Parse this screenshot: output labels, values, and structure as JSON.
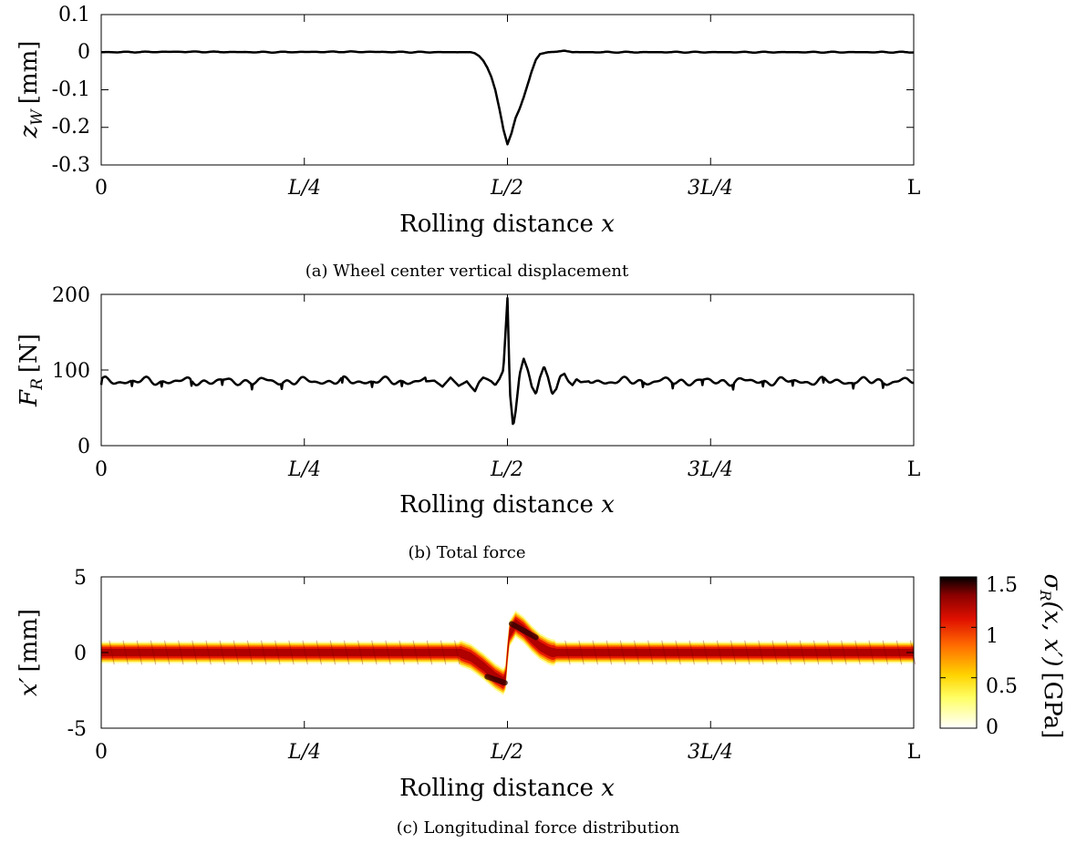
{
  "figure": {
    "captions": [
      "(a) Wheel center vertical displacement",
      "(b) Total force",
      "(c) Longitudinal force distribution"
    ]
  },
  "colors": {
    "line": "#000000",
    "axes": "#000000",
    "background": "#ffffff"
  },
  "chart_data": [
    {
      "type": "line",
      "panel": "a",
      "caption": "(a) Wheel center vertical displacement",
      "xlabel_text": "Rolling distance",
      "xlabel_var": "x",
      "ylabel_sym": "z",
      "ylabel_sub": "W",
      "ylabel_unit": "[mm]",
      "xticks": [
        "0",
        "L/4",
        "L/2",
        "3L/4",
        "L"
      ],
      "yticks": [
        "0.1",
        "0",
        "-0.1",
        "-0.2",
        "-0.3"
      ],
      "xlim": [
        0,
        1
      ],
      "ylim": [
        -0.3,
        0.1
      ],
      "x_unit": "fraction of L",
      "series": [
        {
          "x": [
            0,
            0.1,
            0.2,
            0.3,
            0.4,
            0.45,
            0.455,
            0.46,
            0.465,
            0.47,
            0.475,
            0.48,
            0.485,
            0.49,
            0.495,
            0.5,
            0.505,
            0.51,
            0.515,
            0.52,
            0.525,
            0.53,
            0.535,
            0.54,
            0.55,
            0.56,
            0.57,
            0.58,
            0.6,
            0.7,
            0.8,
            0.9,
            1.0
          ],
          "values": [
            0,
            0.001,
            0,
            0.001,
            0,
            0,
            0,
            -0.003,
            -0.01,
            -0.022,
            -0.04,
            -0.065,
            -0.1,
            -0.15,
            -0.205,
            -0.245,
            -0.215,
            -0.175,
            -0.15,
            -0.12,
            -0.085,
            -0.05,
            -0.02,
            -0.005,
            0,
            0.001,
            0.004,
            0,
            0,
            0,
            0,
            0,
            0
          ]
        }
      ],
      "grid": false,
      "legend": "none"
    },
    {
      "type": "line",
      "panel": "b",
      "caption": "(b) Total force",
      "xlabel_text": "Rolling distance",
      "xlabel_var": "x",
      "ylabel_sym": "F",
      "ylabel_sub": "R",
      "ylabel_unit": "[N]",
      "xticks": [
        "0",
        "L/4",
        "L/2",
        "3L/4",
        "L"
      ],
      "yticks": [
        "200",
        "100",
        "0"
      ],
      "xlim": [
        0,
        1
      ],
      "ylim": [
        0,
        200
      ],
      "x_unit": "fraction of L",
      "baseline": 85,
      "ripple_amplitude": 4,
      "series": [
        {
          "x": [
            0.4,
            0.41,
            0.42,
            0.43,
            0.44,
            0.45,
            0.455,
            0.46,
            0.465,
            0.47,
            0.475,
            0.48,
            0.485,
            0.49,
            0.495,
            0.5,
            0.503,
            0.507,
            0.51,
            0.515,
            0.52,
            0.525,
            0.53,
            0.535,
            0.54,
            0.545,
            0.55,
            0.555,
            0.56,
            0.565,
            0.57,
            0.575,
            0.58,
            0.585,
            0.59,
            0.6
          ],
          "values": [
            85,
            86,
            78,
            90,
            79,
            85,
            78,
            72,
            84,
            90,
            88,
            85,
            80,
            88,
            100,
            195,
            70,
            25,
            45,
            95,
            115,
            100,
            78,
            68,
            90,
            105,
            90,
            68,
            75,
            92,
            95,
            85,
            80,
            88,
            84,
            85
          ]
        }
      ],
      "grid": false,
      "legend": "none"
    },
    {
      "type": "heatmap",
      "panel": "c",
      "caption": "(c) Longitudinal force distribution",
      "xlabel_text": "Rolling distance",
      "xlabel_var": "x",
      "ylabel_sym": "x′",
      "ylabel_unit": "[mm]",
      "xticks": [
        "0",
        "L/4",
        "L/2",
        "3L/4",
        "L"
      ],
      "yticks": [
        "5",
        "0",
        "-5"
      ],
      "xlim": [
        0,
        1
      ],
      "ylim": [
        -5,
        5
      ],
      "x_unit": "fraction of L",
      "band_center": {
        "x": [
          0,
          0.44,
          0.455,
          0.47,
          0.485,
          0.497,
          0.502,
          0.51,
          0.52,
          0.53,
          0.54,
          0.55,
          0.555,
          0.56,
          1.0
        ],
        "values": [
          0,
          0,
          -0.3,
          -0.9,
          -1.6,
          -2.0,
          1.2,
          1.9,
          1.5,
          0.9,
          0.4,
          0.1,
          0,
          0,
          0
        ]
      },
      "band_half_width_mm": 0.7,
      "peak_gpa": 1.2,
      "colorbar": {
        "label_sym": "σ",
        "label_sub": "R",
        "label_args": "(x, x′)",
        "label_unit": "[GPa]",
        "ticks": [
          "1.5",
          "1",
          "0.5",
          "0"
        ],
        "range": [
          0,
          1.5
        ],
        "colormap": "hot"
      },
      "legend": "none"
    }
  ]
}
